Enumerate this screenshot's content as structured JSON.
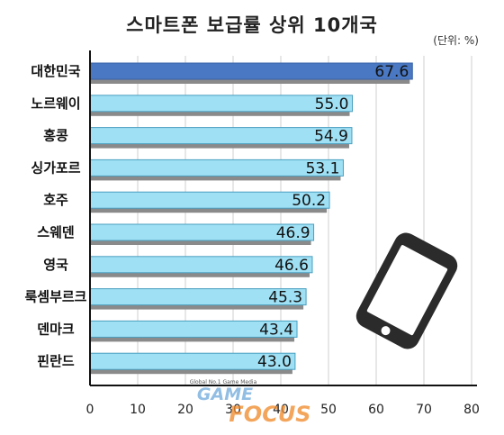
{
  "title": "스마트폰 보급률 상위 10개국",
  "unit_label": "(단위: %)",
  "colors": {
    "highlight": "#4a78c2",
    "bar": "#9fe0f4",
    "bar_border": "#4a9fc0",
    "shadow": "#8a8a8a",
    "grid": "#cfcfcf",
    "axis": "#111111"
  },
  "chart_data": {
    "type": "bar",
    "orientation": "horizontal",
    "categories": [
      "대한민국",
      "노르웨이",
      "홍콩",
      "싱가포르",
      "호주",
      "스웨덴",
      "영국",
      "룩셈부르크",
      "덴마크",
      "핀란드"
    ],
    "values": [
      67.6,
      55.0,
      54.9,
      53.1,
      50.2,
      46.9,
      46.6,
      45.3,
      43.4,
      43.0
    ],
    "value_labels": [
      "67.6",
      "55.0",
      "54.9",
      "53.1",
      "50.2",
      "46.9",
      "46.6",
      "45.3",
      "43.4",
      "43.0"
    ],
    "highlight_index": 0,
    "xlim": [
      0,
      80
    ],
    "xticks": [
      0,
      10,
      20,
      30,
      40,
      50,
      60,
      70,
      80
    ],
    "grid": true
  },
  "watermark": {
    "tagline": "Global No.1 Game Media",
    "logo_top": "GAME",
    "logo_bottom": "FOCUS"
  },
  "decoration": {
    "icon": "smartphone-icon"
  }
}
